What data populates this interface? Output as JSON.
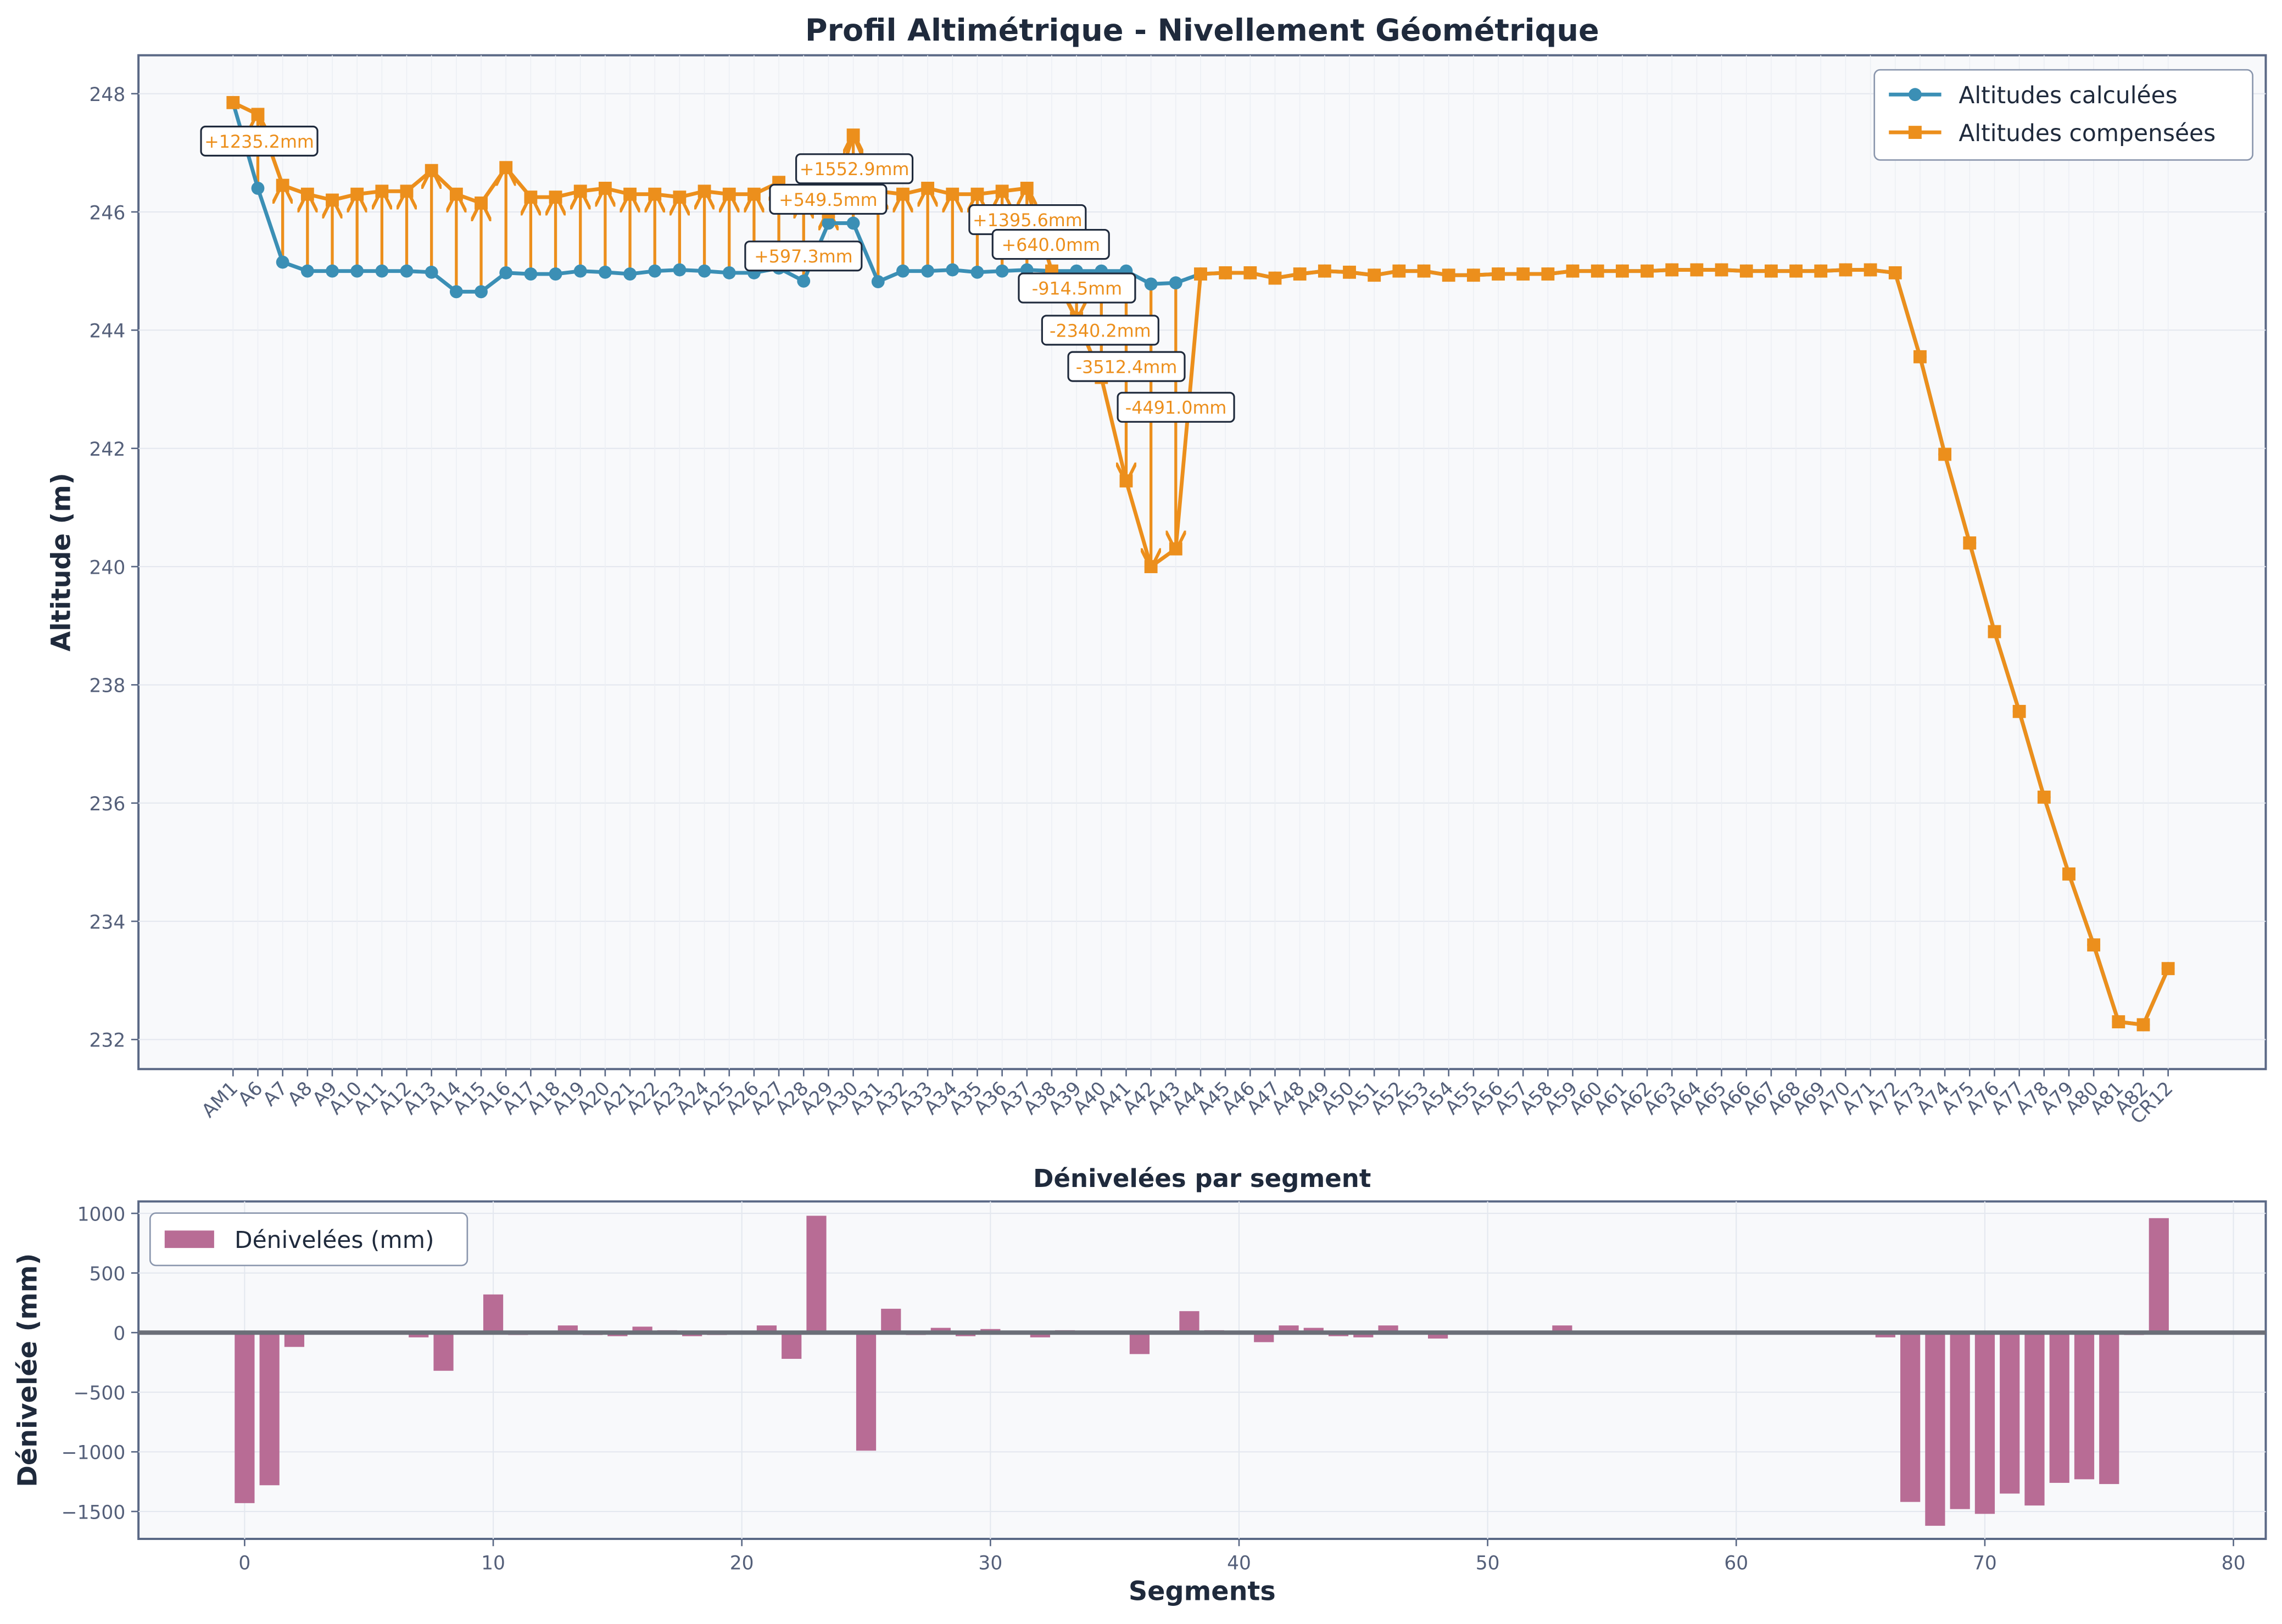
{
  "chart_data": [
    {
      "type": "line",
      "title": "Profil Altimétrique - Nivellement Géométrique",
      "ylabel": "Altitude (m)",
      "categories": [
        "AM1",
        "A6",
        "A7",
        "A8",
        "A9",
        "A10",
        "A11",
        "A12",
        "A13",
        "A14",
        "A15",
        "A16",
        "A17",
        "A18",
        "A19",
        "A20",
        "A21",
        "A22",
        "A23",
        "A24",
        "A25",
        "A26",
        "A27",
        "A28",
        "A29",
        "A30",
        "A31",
        "A32",
        "A33",
        "A34",
        "A35",
        "A36",
        "A37",
        "A38",
        "A39",
        "A40",
        "A41",
        "A42",
        "A43",
        "A44",
        "A45",
        "A46",
        "A47",
        "A48",
        "A49",
        "A50",
        "A51",
        "A52",
        "A53",
        "A54",
        "A55",
        "A56",
        "A57",
        "A58",
        "A59",
        "A60",
        "A61",
        "A62",
        "A63",
        "A64",
        "A65",
        "A66",
        "A67",
        "A68",
        "A69",
        "A70",
        "A71",
        "A72",
        "A73",
        "A74",
        "A75",
        "A76",
        "A77",
        "A78",
        "A79",
        "A80",
        "A81",
        "A82",
        "CR12"
      ],
      "series": [
        {
          "name": "Altitudes calculées",
          "color": "#3b8fb5",
          "marker": "circle",
          "values": [
            247.85,
            246.4,
            245.15,
            245.0,
            245.0,
            245.0,
            245.0,
            245.0,
            244.98,
            244.65,
            244.65,
            244.97,
            244.95,
            244.95,
            245.0,
            244.98,
            244.95,
            245.0,
            245.02,
            245.0,
            244.97,
            244.97,
            245.05,
            244.83,
            245.81,
            245.81,
            244.82,
            245.0,
            245.0,
            245.02,
            244.98,
            245.0,
            245.02,
            245.0,
            245.0,
            245.0,
            245.0,
            244.78,
            244.8,
            244.95,
            244.97,
            244.97,
            244.88,
            244.95,
            245.0,
            244.98,
            244.93,
            245.0,
            245.0,
            244.93,
            244.93,
            244.95,
            244.95,
            244.95,
            245.0,
            245.0,
            245.0,
            245.0,
            245.02,
            245.02,
            245.02,
            245.0,
            245.0,
            245.0,
            245.0,
            245.02,
            245.02,
            244.97,
            243.55,
            241.9,
            240.4,
            238.9,
            237.55,
            236.1,
            234.8,
            233.6,
            232.3,
            232.25,
            233.2
          ]
        },
        {
          "name": "Altitudes compensées",
          "color": "#ec8f1c",
          "marker": "square",
          "values": [
            247.85,
            247.65,
            246.45,
            246.3,
            246.2,
            246.3,
            246.35,
            246.35,
            246.7,
            246.3,
            246.15,
            246.75,
            246.25,
            246.25,
            246.35,
            246.4,
            246.3,
            246.3,
            246.25,
            246.35,
            246.3,
            246.3,
            246.5,
            246.2,
            246.0,
            247.3,
            246.35,
            246.3,
            246.4,
            246.3,
            246.3,
            246.35,
            246.4,
            245.0,
            244.2,
            243.2,
            241.45,
            240.0,
            240.3,
            244.95,
            244.97,
            244.97,
            244.88,
            244.95,
            245.0,
            244.98,
            244.93,
            245.0,
            245.0,
            244.93,
            244.93,
            244.95,
            244.95,
            244.95,
            245.0,
            245.0,
            245.0,
            245.0,
            245.02,
            245.02,
            245.02,
            245.0,
            245.0,
            245.0,
            245.0,
            245.02,
            245.02,
            244.97,
            243.55,
            241.9,
            240.4,
            238.9,
            237.55,
            236.1,
            234.8,
            233.6,
            232.3,
            232.25,
            233.2
          ]
        }
      ],
      "annotations": [
        "+1235.2mm",
        "+1552.9mm",
        "+549.5mm",
        "+1395.6mm",
        "+640.0mm",
        "+597.3mm",
        "-914.5mm",
        "-2340.2mm",
        "-3512.4mm",
        "-4491.0mm"
      ],
      "ylim": [
        231.5,
        248.65
      ],
      "yticks": [
        232,
        234,
        236,
        238,
        240,
        242,
        244,
        246,
        248
      ],
      "grid": true,
      "legend": "upper right"
    },
    {
      "type": "bar",
      "title": "Dénivelées par segment",
      "xlabel": "Segments",
      "ylabel": "Dénivelée (mm)",
      "x": [
        0,
        1,
        2,
        3,
        4,
        5,
        6,
        7,
        8,
        9,
        10,
        11,
        12,
        13,
        14,
        15,
        16,
        17,
        18,
        19,
        20,
        21,
        22,
        23,
        24,
        25,
        26,
        27,
        28,
        29,
        30,
        31,
        32,
        33,
        34,
        35,
        36,
        37,
        38,
        39,
        40,
        41,
        42,
        43,
        44,
        45,
        46,
        47,
        48,
        49,
        50,
        51,
        52,
        53,
        54,
        55,
        56,
        57,
        58,
        59,
        60,
        61,
        62,
        63,
        64,
        65,
        66,
        67,
        68,
        69,
        70,
        71,
        72,
        73,
        74,
        75,
        76,
        77
      ],
      "series": [
        {
          "name": "Dénivelées (mm)",
          "color": "#b86c95",
          "values": [
            -1430,
            -1280,
            -120,
            10,
            10,
            15,
            5,
            -40,
            -320,
            5,
            320,
            -20,
            5,
            60,
            -20,
            -30,
            50,
            20,
            -30,
            -20,
            -5,
            60,
            -220,
            980,
            10,
            -990,
            200,
            -20,
            40,
            -30,
            30,
            10,
            -40,
            20,
            0,
            -10,
            -180,
            10,
            180,
            20,
            0,
            -80,
            60,
            40,
            -30,
            -40,
            60,
            0,
            -50,
            0,
            0,
            10,
            -10,
            60,
            0,
            -5,
            5,
            5,
            -5,
            5,
            -15,
            5,
            5,
            -5,
            10,
            5,
            -40,
            -1420,
            -1620,
            -1480,
            -1520,
            -1350,
            -1450,
            -1260,
            -1230,
            -1270,
            -20,
            960
          ]
        }
      ],
      "xlim": [
        -4.27,
        81.3
      ],
      "xticks": [
        0,
        10,
        20,
        30,
        40,
        50,
        60,
        70,
        80
      ],
      "ylim": [
        -1730,
        1100
      ],
      "yticks": [
        {
          "value": -1500,
          "label": "−1500"
        },
        {
          "value": -1000,
          "label": "−1000"
        },
        {
          "value": -500,
          "label": "−500"
        },
        0,
        500,
        1000
      ],
      "grid": true,
      "legend": "upper left"
    }
  ]
}
